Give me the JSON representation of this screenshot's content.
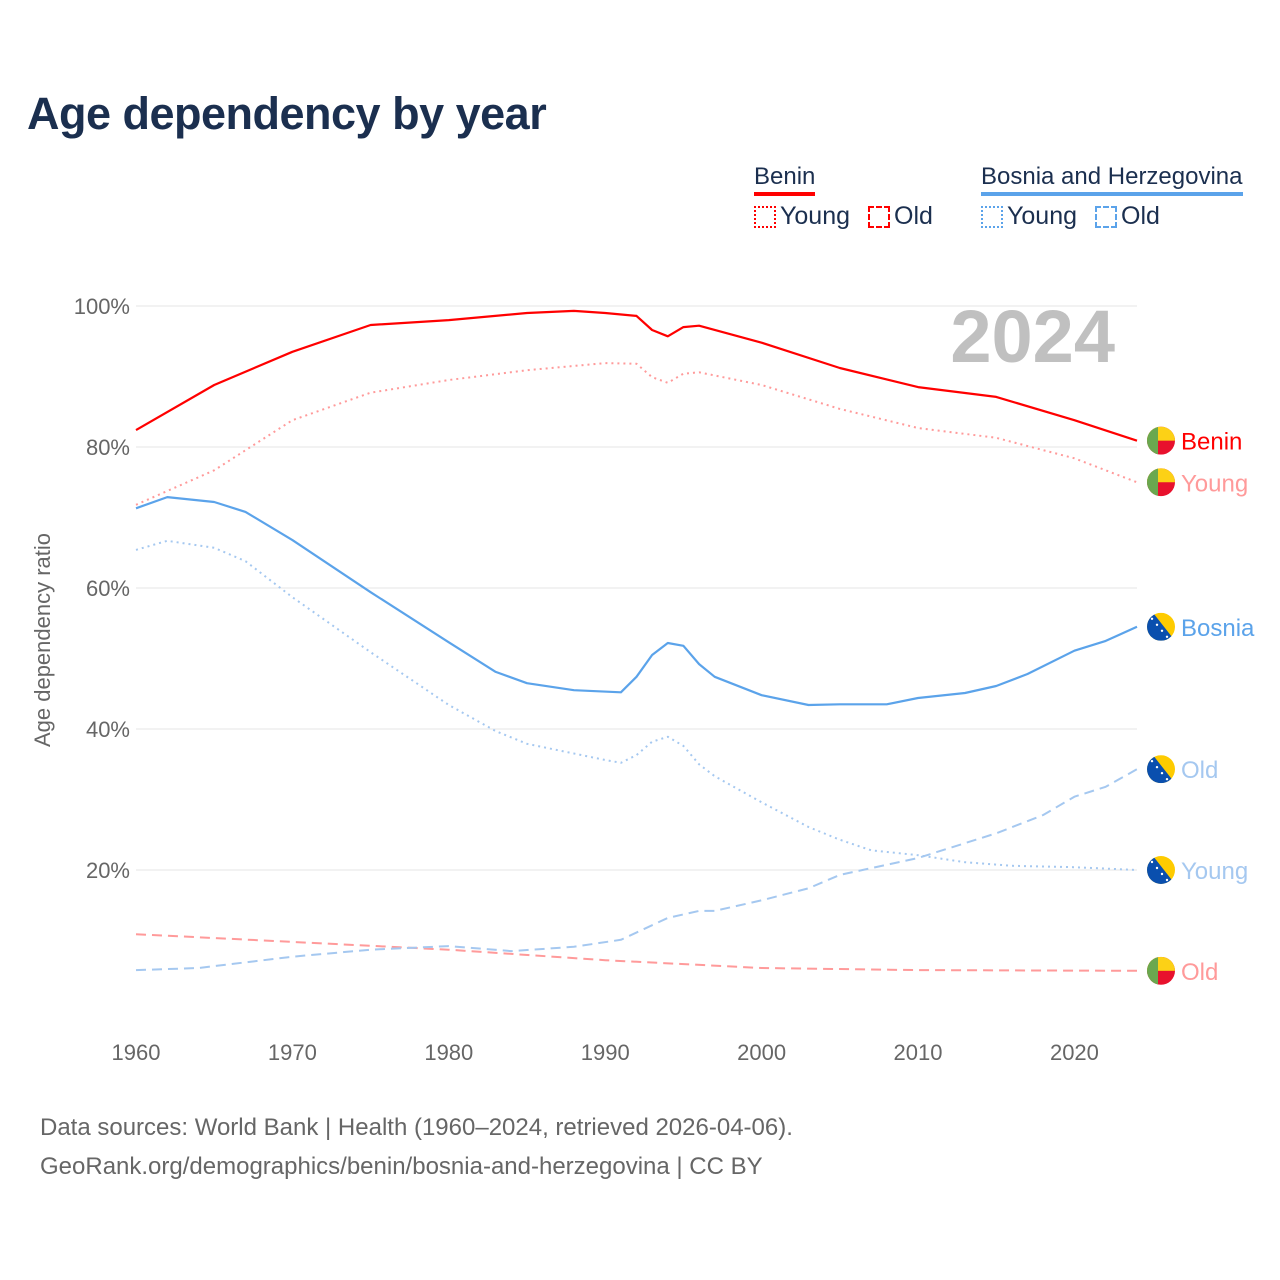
{
  "title": "Age dependency by year",
  "legend": {
    "groups": [
      {
        "name": "Benin",
        "color": "#ff0000",
        "light": "#ff0000",
        "items": [
          {
            "label": "Young",
            "style": "dotted"
          },
          {
            "label": "Old",
            "style": "dashed"
          }
        ]
      },
      {
        "name": "Bosnia and Herzegovina",
        "color": "#5ba3ea",
        "light": "#5ba3ea",
        "items": [
          {
            "label": "Young",
            "style": "dotted"
          },
          {
            "label": "Old",
            "style": "dashed"
          }
        ]
      }
    ]
  },
  "footer": {
    "line1": "Data sources: World Bank | Health (1960–2024, retrieved 2026-04-06).",
    "line2": "GeoRank.org/demographics/benin/bosnia-and-herzegovina | CC BY"
  },
  "chart_data": {
    "type": "line",
    "title": "Age dependency by year",
    "year_label": "2024",
    "xlabel": "",
    "ylabel": "Age dependency ratio",
    "xlim": [
      1960,
      2024
    ],
    "ylim": [
      0,
      100
    ],
    "xticks": [
      1960,
      1970,
      1980,
      1990,
      2000,
      2010,
      2020
    ],
    "yticks": [
      20,
      40,
      60,
      80,
      100
    ],
    "ytick_labels": [
      "20%",
      "40%",
      "60%",
      "80%",
      "100%"
    ],
    "grid": true,
    "series": [
      {
        "name": "Benin",
        "end_label": "Benin",
        "flag": "benin",
        "color": "#ff0000",
        "style": "solid",
        "x": [
          1960,
          1965,
          1970,
          1975,
          1980,
          1985,
          1988,
          1990,
          1992,
          1993,
          1994,
          1995,
          1996,
          2000,
          2005,
          2010,
          2015,
          2020,
          2024
        ],
        "y": [
          82.4,
          88.8,
          93.5,
          97.3,
          98.0,
          99.0,
          99.3,
          99.0,
          98.6,
          96.6,
          95.7,
          97.0,
          97.2,
          94.8,
          91.2,
          88.5,
          87.1,
          83.8,
          80.9
        ]
      },
      {
        "name": "Benin Young",
        "end_label": "Young",
        "flag": "benin",
        "color": "#ff9a9a",
        "style": "dotted",
        "x": [
          1960,
          1965,
          1970,
          1975,
          1980,
          1985,
          1990,
          1992,
          1993,
          1994,
          1995,
          1996,
          2000,
          2005,
          2010,
          2015,
          2020,
          2024
        ],
        "y": [
          71.8,
          76.7,
          83.8,
          87.7,
          89.5,
          90.9,
          91.9,
          91.8,
          89.9,
          89.1,
          90.4,
          90.6,
          88.8,
          85.4,
          82.7,
          81.3,
          78.4,
          75.0
        ]
      },
      {
        "name": "Benin Old",
        "end_label": "Old",
        "flag": "benin",
        "color": "#ff9a9a",
        "style": "dashed",
        "x": [
          1960,
          1970,
          1980,
          1990,
          2000,
          2010,
          2024
        ],
        "y": [
          10.9,
          9.8,
          8.7,
          7.2,
          6.1,
          5.8,
          5.7
        ]
      },
      {
        "name": "Bosnia",
        "end_label": "Bosnia",
        "flag": "bosnia",
        "color": "#5ba3ea",
        "style": "solid",
        "x": [
          1960,
          1962,
          1965,
          1967,
          1970,
          1975,
          1980,
          1983,
          1985,
          1988,
          1991,
          1992,
          1993,
          1994,
          1995,
          1996,
          1997,
          2000,
          2003,
          2005,
          2008,
          2010,
          2013,
          2015,
          2017,
          2020,
          2022,
          2024
        ],
        "y": [
          71.3,
          72.9,
          72.2,
          70.8,
          66.8,
          59.4,
          52.3,
          48.1,
          46.5,
          45.5,
          45.2,
          47.4,
          50.5,
          52.2,
          51.8,
          49.2,
          47.4,
          44.8,
          43.4,
          43.5,
          43.5,
          44.4,
          45.1,
          46.1,
          47.8,
          51.1,
          52.5,
          54.5
        ]
      },
      {
        "name": "Bosnia Old",
        "end_label": "Old",
        "flag": "bosnia",
        "color": "#a5c8f0",
        "style": "dashed",
        "x": [
          1960,
          1964,
          1970,
          1975,
          1980,
          1984,
          1988,
          1991,
          1994,
          1996,
          1997,
          2000,
          2003,
          2005,
          2010,
          2015,
          2018,
          2020,
          2022,
          2024
        ],
        "y": [
          5.8,
          6.1,
          7.7,
          8.7,
          9.2,
          8.5,
          9.1,
          10.1,
          13.2,
          14.2,
          14.2,
          15.7,
          17.4,
          19.3,
          21.7,
          25.2,
          27.8,
          30.4,
          31.8,
          34.3
        ]
      },
      {
        "name": "Bosnia Young",
        "end_label": "Young",
        "flag": "bosnia",
        "color": "#a5c8f0",
        "style": "dotted",
        "x": [
          1960,
          1962,
          1965,
          1967,
          1970,
          1975,
          1980,
          1983,
          1985,
          1990,
          1991,
          1992,
          1993,
          1994,
          1995,
          1996,
          1997,
          2000,
          2003,
          2005,
          2007,
          2010,
          2013,
          2016,
          2020,
          2024
        ],
        "y": [
          65.4,
          66.7,
          65.7,
          63.8,
          58.7,
          50.9,
          43.4,
          39.7,
          37.9,
          35.6,
          35.2,
          36.3,
          38.2,
          38.9,
          37.6,
          35.0,
          33.3,
          29.6,
          26.1,
          24.3,
          22.8,
          22.1,
          21.1,
          20.6,
          20.4,
          20.0
        ]
      }
    ]
  }
}
